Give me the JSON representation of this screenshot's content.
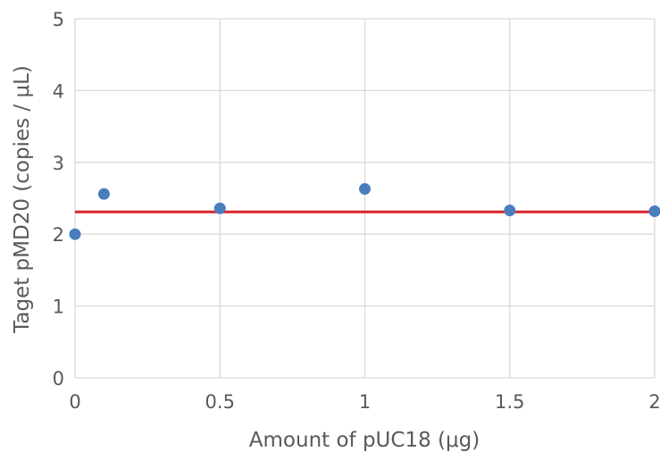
{
  "chart_data": {
    "type": "scatter",
    "xlabel": "Amount of pUC18 (μg)",
    "ylabel": "Taget pMD20 (copies / μL)",
    "xlim": [
      0,
      2
    ],
    "ylim": [
      0,
      5
    ],
    "x_ticks": [
      0,
      0.5,
      1,
      1.5,
      2
    ],
    "x_tick_labels": [
      "0",
      "0.5",
      "1",
      "1.5",
      "2"
    ],
    "y_ticks": [
      0,
      1,
      2,
      3,
      4,
      5
    ],
    "y_tick_labels": [
      "0",
      "1",
      "2",
      "3",
      "4",
      "5"
    ],
    "grid": true,
    "series": [
      {
        "type": "scatter",
        "color": "#4a7ebb",
        "points": [
          {
            "x": 0,
            "y": 2.0
          },
          {
            "x": 0.1,
            "y": 2.56
          },
          {
            "x": 0.5,
            "y": 2.36
          },
          {
            "x": 1,
            "y": 2.63
          },
          {
            "x": 1.5,
            "y": 2.33
          },
          {
            "x": 2,
            "y": 2.32
          }
        ]
      },
      {
        "type": "hline",
        "color": "#d62728",
        "y": 2.31
      }
    ]
  }
}
